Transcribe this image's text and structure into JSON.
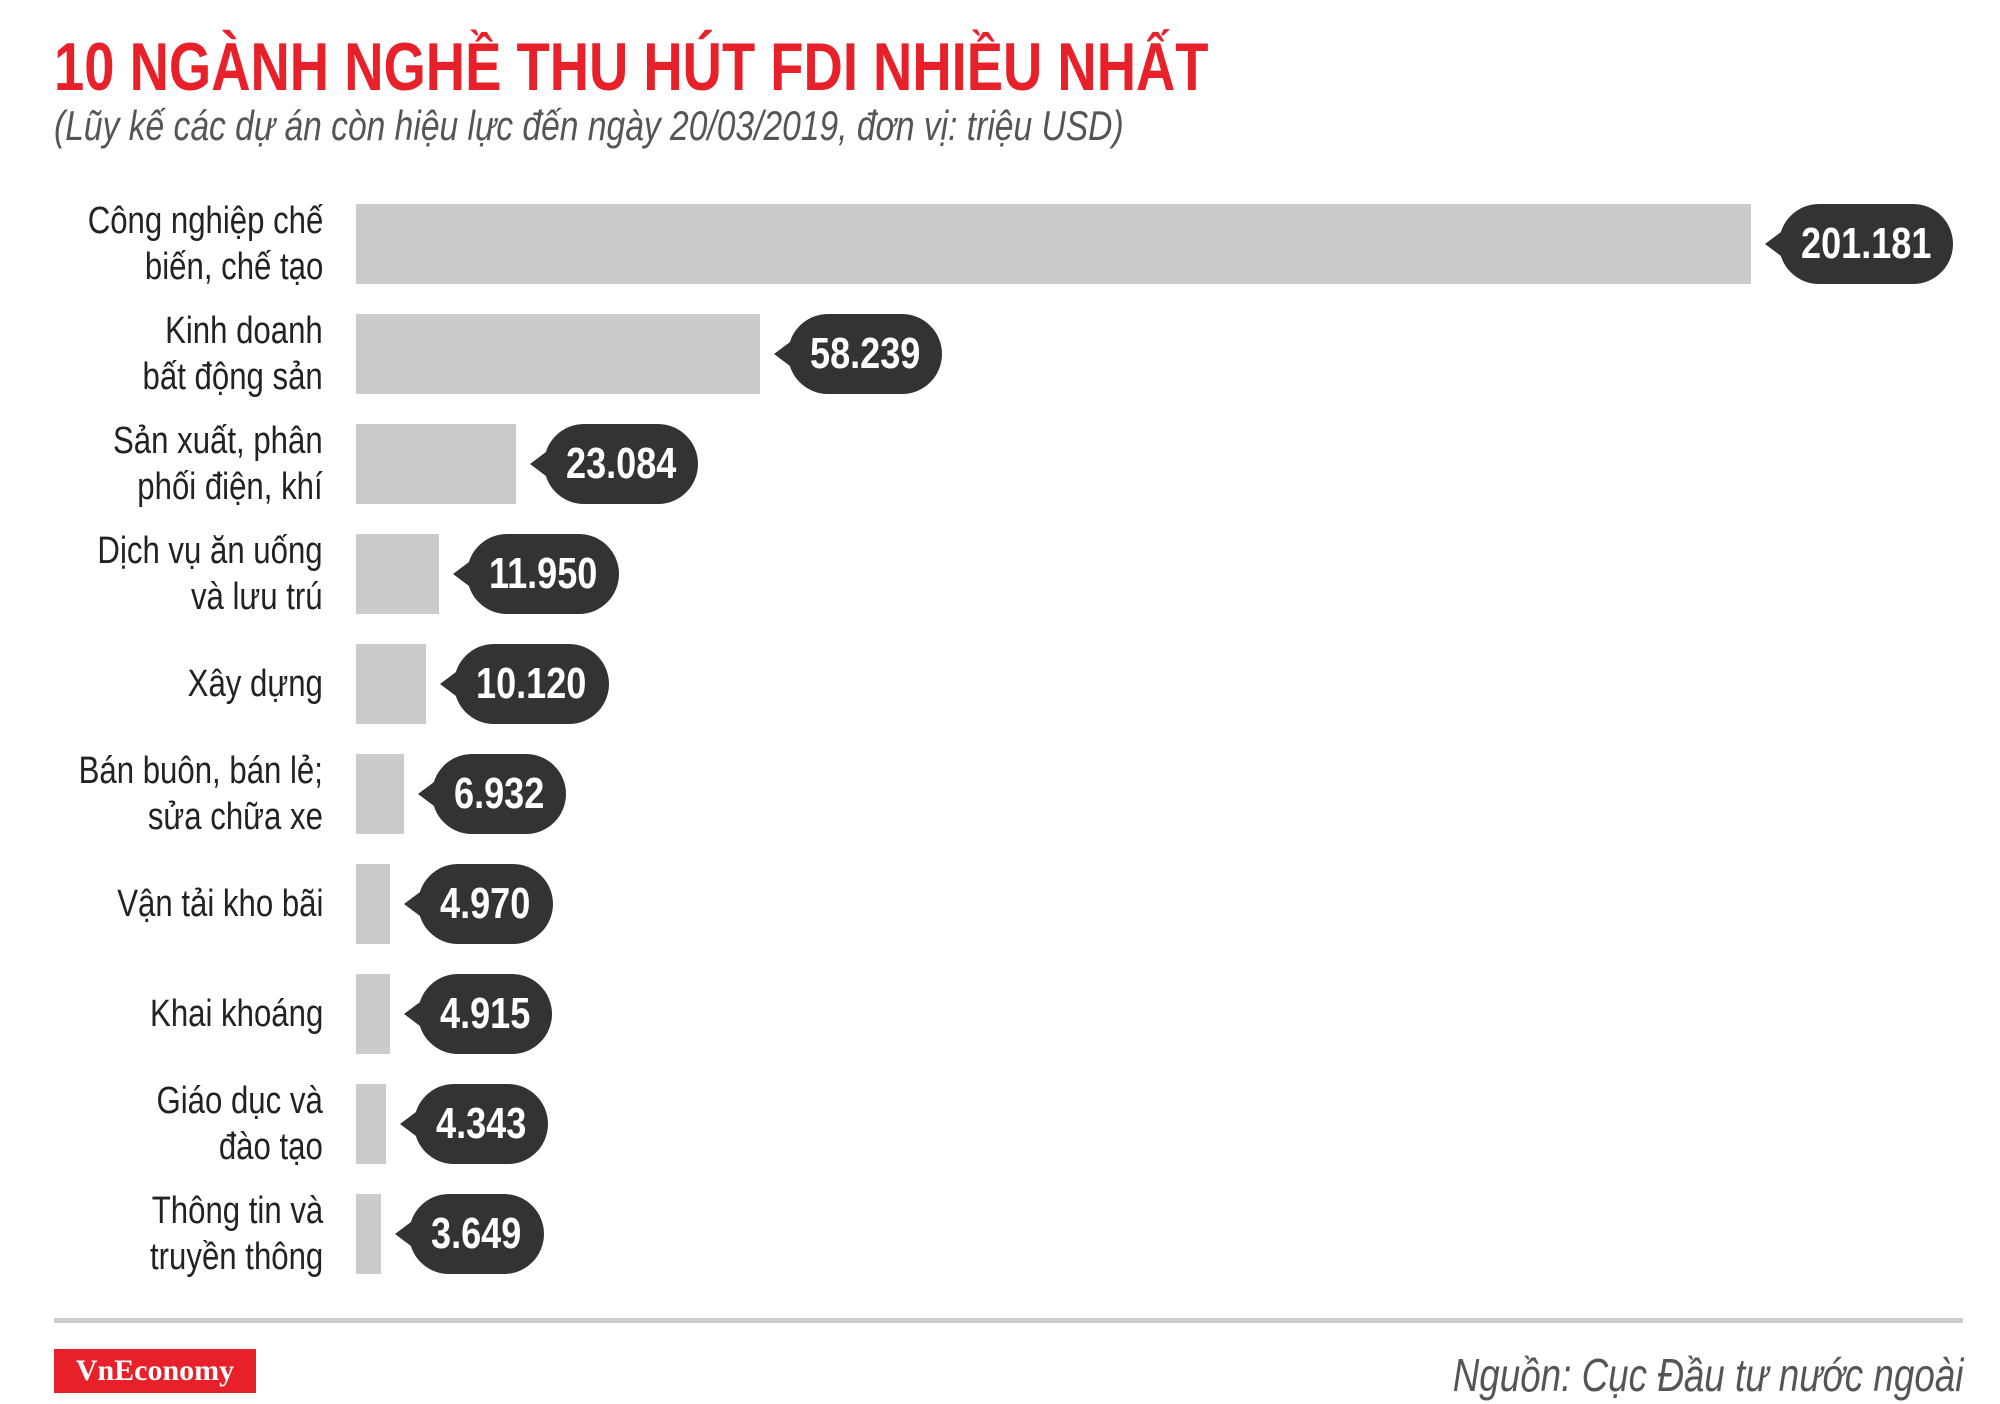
{
  "header": {
    "title": "10 NGÀNH NGHỀ THU HÚT FDI NHIỀU NHẤT",
    "subtitle": "(Lũy kế các dự án còn hiệu lực đến ngày 20/03/2019, đơn vị: triệu USD)"
  },
  "chart_data": {
    "type": "bar",
    "orientation": "horizontal",
    "title": "10 NGÀNH NGHỀ THU HÚT FDI NHIỀU NHẤT",
    "subtitle": "(Lũy kế các dự án còn hiệu lực đến ngày 20/03/2019, đơn vị: triệu USD)",
    "categories": [
      [
        "Công nghiệp chế",
        "biến, chế tạo"
      ],
      [
        "Kinh doanh",
        "bất động sản"
      ],
      [
        "Sản xuất, phân",
        "phối điện, khí"
      ],
      [
        "Dịch vụ ăn uống",
        "và lưu trú"
      ],
      [
        "Xây dựng"
      ],
      [
        "Bán buôn, bán lẻ;",
        "sửa chữa xe"
      ],
      [
        "Vận tải kho bãi"
      ],
      [
        "Khai khoáng"
      ],
      [
        "Giáo dục và",
        "đào tạo"
      ],
      [
        "Thông tin và",
        "truyền thông"
      ]
    ],
    "values": [
      201181,
      58239,
      23084,
      11950,
      10120,
      6932,
      4970,
      4915,
      4343,
      3649
    ],
    "data_labels": [
      "201.181",
      "58.239",
      "23.084",
      "11.950",
      "10.120",
      "6.932",
      "4.970",
      "4.915",
      "4.343",
      "3.649"
    ],
    "xlim": [
      0,
      201181
    ],
    "grid": false,
    "colors": {
      "bar": "#cccbcc",
      "label_bubble": "#333333",
      "title": "#e8202a"
    }
  },
  "footer": {
    "logo": "VnEconomy",
    "source": "Nguồn: Cục Đầu tư nước ngoài"
  }
}
